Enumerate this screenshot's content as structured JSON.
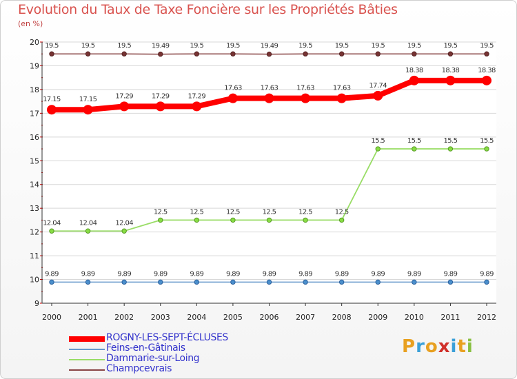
{
  "chart_data": {
    "type": "line",
    "title": "Evolution du Taux de Taxe Foncière sur les Propriétés Bâties",
    "ylabel": "(en %)",
    "xlabel": "",
    "ylim": [
      9,
      20
    ],
    "yticks": [
      "9",
      "10",
      "11",
      "12",
      "13",
      "14",
      "15",
      "16",
      "17",
      "18",
      "19",
      "20"
    ],
    "categories": [
      "2000",
      "2001",
      "2002",
      "2003",
      "2004",
      "2005",
      "2006",
      "2007",
      "2008",
      "2009",
      "2010",
      "2011",
      "2012"
    ],
    "series": [
      {
        "name": "ROGNY-LES-SEPT-ÉCLUSES",
        "color": "#ff0000",
        "values": [
          17.15,
          17.15,
          17.29,
          17.29,
          17.29,
          17.63,
          17.63,
          17.63,
          17.63,
          17.74,
          18.38,
          18.38,
          18.38
        ],
        "labels": [
          "17.15",
          "17.15",
          "17.29",
          "17.29",
          "17.29",
          "17.63",
          "17.63",
          "17.63",
          "17.63",
          "17.74",
          "18.38",
          "18.38",
          "18.38"
        ]
      },
      {
        "name": "Feins-en-Gâtinais",
        "color": "#6699cc",
        "values": [
          9.89,
          9.89,
          9.89,
          9.89,
          9.89,
          9.89,
          9.89,
          9.89,
          9.89,
          9.89,
          9.89,
          9.89,
          9.89
        ],
        "labels": [
          "9.89",
          "9.89",
          "9.89",
          "9.89",
          "9.89",
          "9.89",
          "9.89",
          "9.89",
          "9.89",
          "9.89",
          "9.89",
          "9.89",
          "9.89"
        ]
      },
      {
        "name": "Dammarie-sur-Loing",
        "color": "#99dd66",
        "values": [
          12.04,
          12.04,
          12.04,
          12.5,
          12.5,
          12.5,
          12.5,
          12.5,
          12.5,
          15.5,
          15.5,
          15.5,
          15.5
        ],
        "labels": [
          "12.04",
          "12.04",
          "12.04",
          "12.5",
          "12.5",
          "12.5",
          "12.5",
          "12.5",
          "12.5",
          "15.5",
          "15.5",
          "15.5",
          "15.5"
        ]
      },
      {
        "name": "Champcevrais",
        "color": "#884444",
        "values": [
          19.5,
          19.5,
          19.5,
          19.49,
          19.5,
          19.5,
          19.49,
          19.5,
          19.5,
          19.5,
          19.5,
          19.5,
          19.5
        ],
        "labels": [
          "19.5",
          "19.5",
          "19.5",
          "19.49",
          "19.5",
          "19.5",
          "19.49",
          "19.5",
          "19.5",
          "19.5",
          "19.5",
          "19.5",
          "19.5"
        ]
      }
    ]
  },
  "logo": {
    "letters": [
      "P",
      "r",
      "o",
      "x",
      "i",
      "t",
      "i"
    ],
    "colors": [
      "#e8a020",
      "#3aa0d8",
      "#e8a020",
      "#d0302a",
      "#3aa0d8",
      "#e8a020",
      "#88c040"
    ]
  }
}
